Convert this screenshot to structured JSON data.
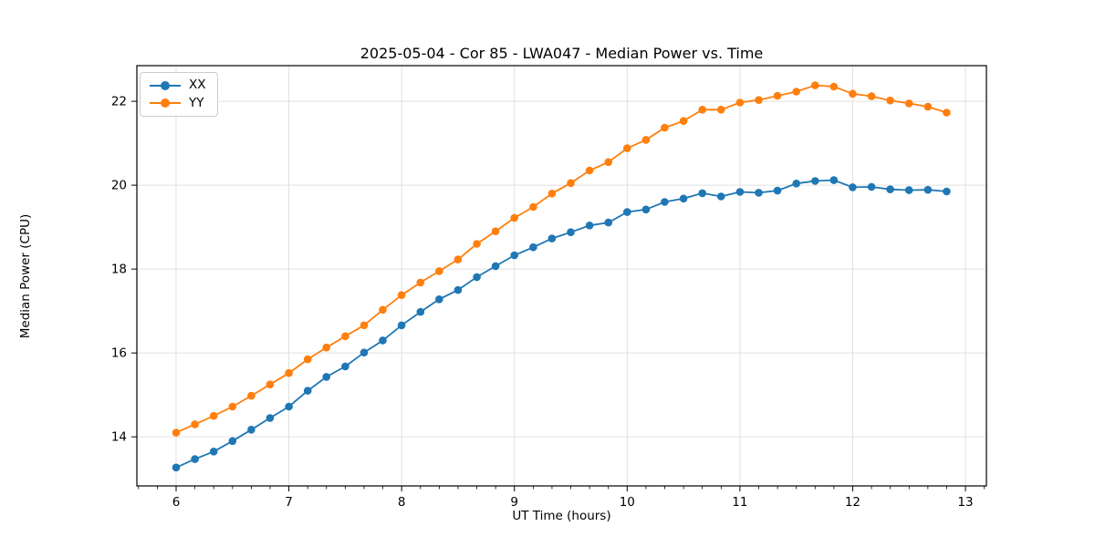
{
  "chart_data": {
    "type": "line",
    "title": "2025-05-04 - Cor 85 - LWA047 - Median Power vs. Time",
    "xlabel": "UT Time (hours)",
    "ylabel": "Median Power (CPU)",
    "xlim": [
      5.652,
      13.186
    ],
    "ylim": [
      12.83,
      22.85
    ],
    "x_ticks": [
      6,
      7,
      8,
      9,
      10,
      11,
      12,
      13
    ],
    "y_ticks": [
      14,
      16,
      18,
      20,
      22
    ],
    "minor_tick_interval_x": 0.16667,
    "grid": true,
    "grid_color": "#e0e0e0",
    "axis_color": "#000000",
    "legend_position": "upper-left",
    "x": [
      6.0,
      6.167,
      6.333,
      6.5,
      6.667,
      6.833,
      7.0,
      7.167,
      7.333,
      7.5,
      7.667,
      7.833,
      8.0,
      8.167,
      8.333,
      8.5,
      8.667,
      8.833,
      9.0,
      9.167,
      9.333,
      9.5,
      9.667,
      9.833,
      10.0,
      10.167,
      10.333,
      10.5,
      10.667,
      10.833,
      11.0,
      11.167,
      11.333,
      11.5,
      11.667,
      11.833,
      12.0,
      12.167,
      12.333,
      12.5,
      12.667,
      12.833
    ],
    "series": [
      {
        "name": "XX",
        "color": "#1f77b4",
        "values": [
          13.27,
          13.47,
          13.65,
          13.9,
          14.17,
          14.45,
          14.72,
          15.1,
          15.43,
          15.68,
          16.01,
          16.3,
          16.66,
          16.98,
          17.28,
          17.5,
          17.81,
          18.07,
          18.33,
          18.52,
          18.73,
          18.88,
          19.04,
          19.11,
          19.36,
          19.42,
          19.6,
          19.68,
          19.81,
          19.73,
          19.84,
          19.82,
          19.87,
          20.04,
          20.1,
          20.12,
          19.95,
          19.96,
          19.9,
          19.88,
          19.89,
          19.85
        ]
      },
      {
        "name": "YY",
        "color": "#ff7f0e",
        "values": [
          14.1,
          14.3,
          14.5,
          14.72,
          14.98,
          15.25,
          15.52,
          15.85,
          16.13,
          16.4,
          16.66,
          17.03,
          17.38,
          17.68,
          17.95,
          18.23,
          18.6,
          18.9,
          19.22,
          19.48,
          19.8,
          20.05,
          20.35,
          20.55,
          20.88,
          21.08,
          21.37,
          21.53,
          21.8,
          21.8,
          21.97,
          22.03,
          22.13,
          22.23,
          22.38,
          22.35,
          22.18,
          22.12,
          22.02,
          21.95,
          21.87,
          21.73
        ]
      }
    ]
  }
}
